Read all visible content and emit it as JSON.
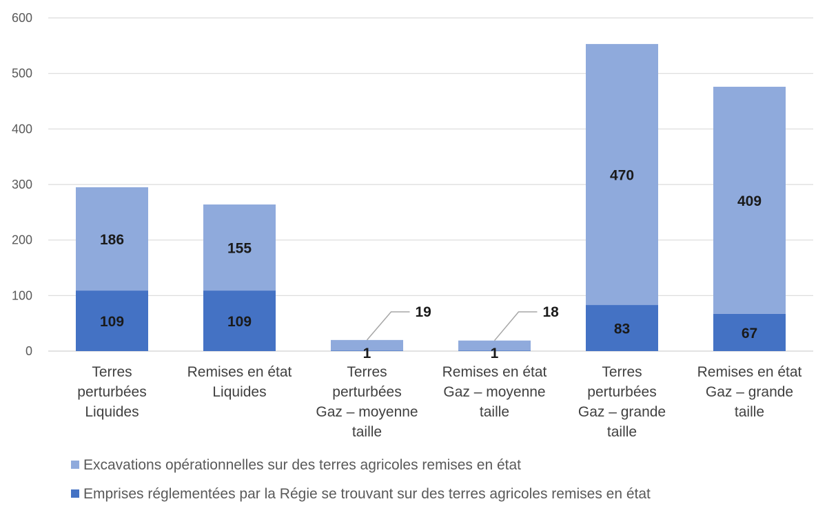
{
  "chart_data": {
    "type": "bar",
    "stacked": true,
    "categories": [
      [
        "Terres",
        "perturbées",
        "Liquides"
      ],
      [
        "Remises en état",
        "Liquides"
      ],
      [
        "Terres",
        "perturbées",
        "Gaz – moyenne",
        "taille"
      ],
      [
        "Remises en état",
        "Gaz – moyenne",
        "taille"
      ],
      [
        "Terres",
        "perturbées",
        "Gaz – grande",
        "taille"
      ],
      [
        "Remises en état",
        "Gaz – grande",
        "taille"
      ]
    ],
    "series": [
      {
        "name": "Emprises réglementées par la Régie se trouvant sur des terres agricoles remises en état",
        "color": "#4472C4",
        "values": [
          109,
          109,
          1,
          1,
          83,
          67
        ]
      },
      {
        "name": "Excavations opérationnelles sur des terres agricoles remises en état",
        "color": "#8FAADC",
        "values": [
          186,
          155,
          19,
          18,
          470,
          409
        ]
      }
    ],
    "ylim": [
      0,
      600
    ],
    "yticks": [
      0,
      100,
      200,
      300,
      400,
      500,
      600
    ],
    "grid": true,
    "legend": "bottom",
    "legend_order": [
      1,
      0
    ]
  }
}
